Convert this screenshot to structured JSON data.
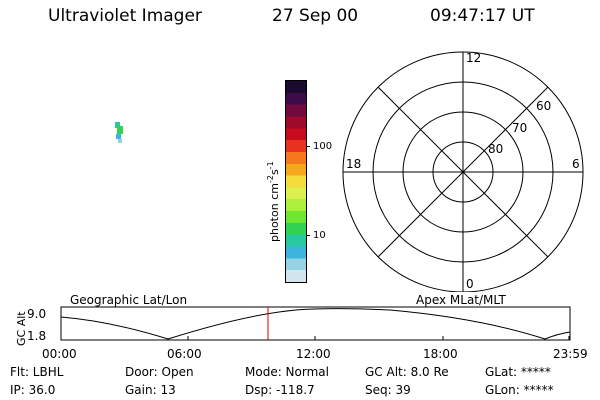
{
  "header": {
    "title": "Ultraviolet Imager",
    "date": "27 Sep 00",
    "time": "09:47:17 UT"
  },
  "colorbar": {
    "label": "photon cm",
    "label_exp1": "-2",
    "label_mid": "s",
    "label_exp2": "-1",
    "tick_100": "100",
    "tick_10": "10",
    "colors": [
      "#1a0a2e",
      "#3d0a4a",
      "#6e0a3e",
      "#9e0a2a",
      "#c80a1e",
      "#e6321e",
      "#f5781e",
      "#f5aa1e",
      "#f5dc3c",
      "#dcf050",
      "#aaf03c",
      "#6ee632",
      "#32d250",
      "#28c8a0",
      "#3cb4dc",
      "#96d2e6",
      "#d2e6ee"
    ]
  },
  "polar": {
    "labels": {
      "top": "12",
      "bottom": "0",
      "left": "18",
      "right": "6",
      "lat60": "60",
      "lat70": "70",
      "lat80": "80"
    }
  },
  "strip": {
    "left_title": "Geographic Lat/Lon",
    "right_title": "Apex MLat/MLT",
    "axis_label": "GC Alt",
    "y_top": "9.0",
    "y_bottom": "1.8",
    "x_ticks": [
      "00:00",
      "06:00",
      "12:00",
      "18:00",
      "23:59"
    ]
  },
  "footer": {
    "row1": [
      "Flt: LBHL",
      "Door: Open",
      "Mode: Normal",
      "GC Alt: 8.0 Re",
      "GLat: *****"
    ],
    "row2": [
      "IP: 36.0",
      "Gain: 13",
      "Dsp: -118.7",
      "Seq: 39",
      "GLon: *****"
    ]
  }
}
